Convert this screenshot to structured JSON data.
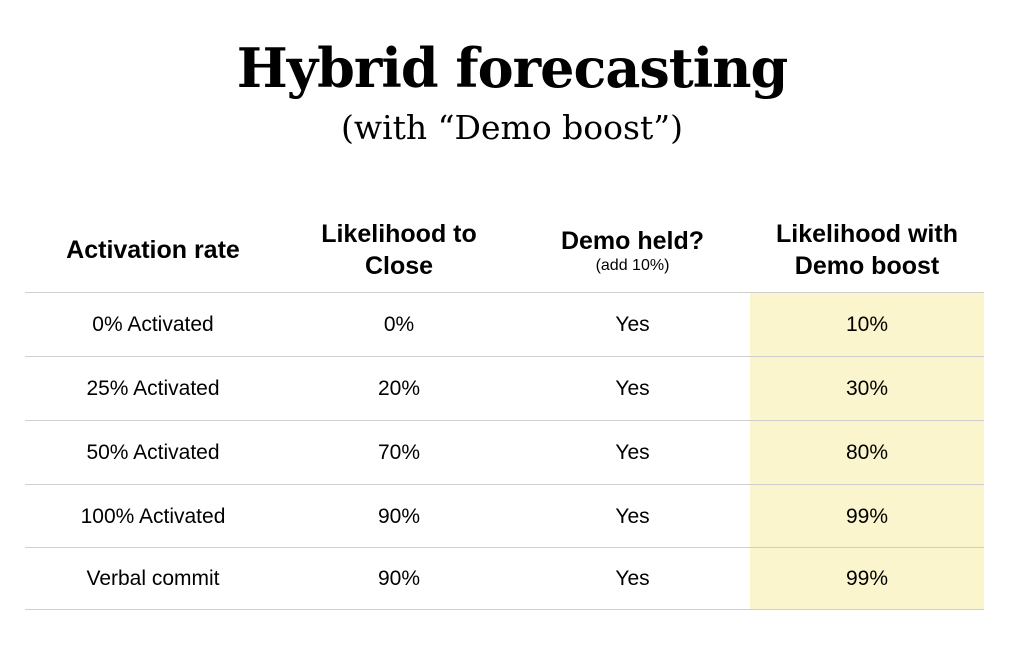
{
  "title": "Hybrid forecasting",
  "subtitle": "(with “Demo boost”)",
  "highlight_color": "#fbf5cd",
  "columns": [
    {
      "label_line1": "Activation rate",
      "label_line2": ""
    },
    {
      "label_line1": "Likelihood to",
      "label_line2": "Close"
    },
    {
      "label_line1": "Demo held?",
      "label_line2": "",
      "note": "(add 10%)"
    },
    {
      "label_line1": "Likelihood with",
      "label_line2": "Demo boost"
    }
  ],
  "rows": [
    {
      "activation": "0% Activated",
      "likelihood": "0%",
      "demo": "Yes",
      "boosted": "10%"
    },
    {
      "activation": "25% Activated",
      "likelihood": "20%",
      "demo": "Yes",
      "boosted": "30%"
    },
    {
      "activation": "50% Activated",
      "likelihood": "70%",
      "demo": "Yes",
      "boosted": "80%"
    },
    {
      "activation": "100% Activated",
      "likelihood": "90%",
      "demo": "Yes",
      "boosted": "99%"
    },
    {
      "activation": "Verbal commit",
      "likelihood": "90%",
      "demo": "Yes",
      "boosted": "99%"
    }
  ]
}
